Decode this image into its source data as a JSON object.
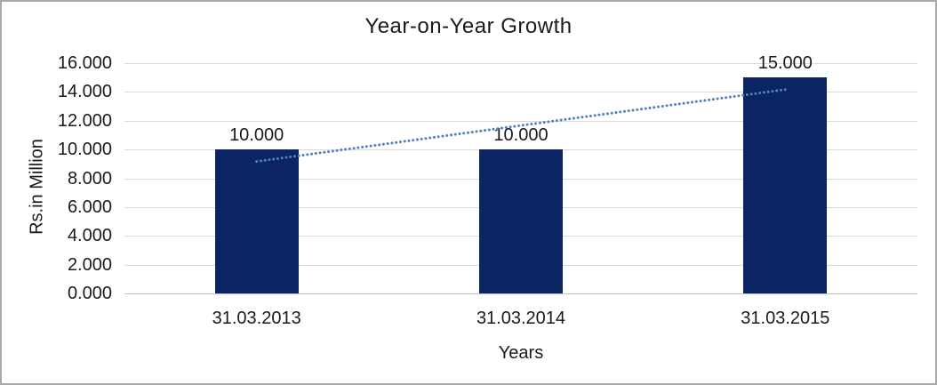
{
  "chart_data": {
    "type": "bar",
    "title": "Year-on-Year Growth",
    "xlabel": "Years",
    "ylabel": "Rs.in Million",
    "categories": [
      "31.03.2013",
      "31.03.2014",
      "31.03.2015"
    ],
    "values": [
      10000,
      10000,
      15000
    ],
    "value_labels": [
      "10.000",
      "10.000",
      "15.000"
    ],
    "ylim": [
      0,
      16000
    ],
    "ytick_step": 2000,
    "ytick_labels": [
      "0.000",
      "2.000",
      "4.000",
      "6.000",
      "8.000",
      "10.000",
      "12.000",
      "14.000",
      "16.000"
    ],
    "grid": true,
    "legend": false,
    "trendline": {
      "type": "linear",
      "style": "dotted",
      "values": [
        9167,
        11667,
        14167
      ],
      "color": "#4f81bd"
    },
    "colors": {
      "bar": "#0b2462",
      "gridline": "#d9d9d9",
      "axis_line": "#c0c0c0",
      "text": "#1a1a1a",
      "background": "#ffffff",
      "border": "#a9a9a9"
    }
  }
}
